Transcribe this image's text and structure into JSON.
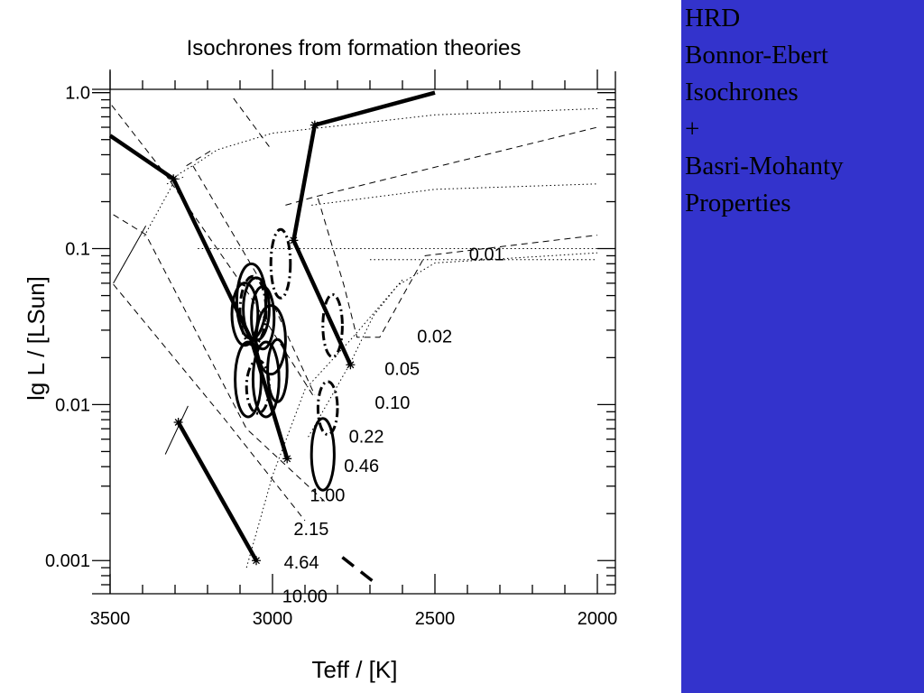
{
  "slide": {
    "panel_color": "#3333cc",
    "text_color": "#000000",
    "lines": [
      "HRD",
      "Bonnor-Ebert",
      "Isochrones",
      "+",
      "Basri-Mohanty",
      "Properties"
    ]
  },
  "chart_data": {
    "type": "line",
    "title": "Isochrones from formation theories",
    "xlabel": "Teff / [K]",
    "ylabel": "lg L / [LSun]",
    "x_reversed": true,
    "y_log": true,
    "xlim": [
      3500,
      2000
    ],
    "ylim": [
      0.0007,
      1.2
    ],
    "x_ticks": [
      3500,
      3000,
      2500,
      2000
    ],
    "x_tick_labels": [
      "3500",
      "3000",
      "2500",
      "2000"
    ],
    "y_ticks": [
      0.001,
      0.01,
      0.1,
      1.0
    ],
    "y_tick_labels": [
      "0.001",
      "0.01",
      "0.1",
      "1.0"
    ],
    "grid": false,
    "legend": "none",
    "series": [
      {
        "style": "solid-bold",
        "points": [
          [
            3500,
            0.53
          ],
          [
            3305,
            0.28
          ],
          [
            3065,
            0.026
          ],
          [
            2955,
            0.0045
          ]
        ]
      },
      {
        "style": "solid-bold",
        "points": [
          [
            2870,
            0.62
          ],
          [
            2935,
            0.113
          ],
          [
            2760,
            0.018
          ]
        ]
      },
      {
        "style": "solid-bold",
        "points": [
          [
            2870,
            0.62
          ],
          [
            2500,
            1.0
          ]
        ]
      },
      {
        "style": "solid-bold",
        "points": [
          [
            3290,
            0.0077
          ],
          [
            3050,
            0.001
          ]
        ]
      },
      {
        "style": "dashed-bold",
        "points": [
          [
            2785,
            0.00105
          ],
          [
            2685,
            0.00072
          ]
        ]
      },
      {
        "style": "solid-thin",
        "points": [
          [
            3490,
            0.06
          ],
          [
            3390,
            0.14
          ]
        ]
      },
      {
        "style": "solid-thin",
        "points": [
          [
            3330,
            0.0048
          ],
          [
            3260,
            0.0098
          ]
        ]
      },
      {
        "style": "dashed",
        "points": [
          [
            3495,
            0.83
          ],
          [
            3330,
            0.3
          ],
          [
            3070,
            0.05
          ],
          [
            2870,
            0.011
          ]
        ]
      },
      {
        "style": "dashed",
        "points": [
          [
            3490,
            0.165
          ],
          [
            3390,
            0.123
          ],
          [
            3080,
            0.007
          ],
          [
            2840,
            0.0024
          ]
        ]
      },
      {
        "style": "dashed",
        "points": [
          [
            3490,
            0.059
          ],
          [
            3150,
            0.0082
          ],
          [
            2900,
            0.0018
          ]
        ]
      },
      {
        "style": "dashed",
        "points": [
          [
            3245,
            0.34
          ],
          [
            3010,
            0.05
          ],
          [
            2870,
            0.0115
          ]
        ]
      },
      {
        "style": "dashed",
        "points": [
          [
            2960,
            0.19
          ],
          [
            2870,
            0.215
          ],
          [
            2000,
            0.6
          ]
        ]
      },
      {
        "style": "dashed",
        "points": [
          [
            2860,
            0.21
          ],
          [
            2780,
            0.058
          ],
          [
            2740,
            0.027
          ],
          [
            2670,
            0.027
          ],
          [
            2530,
            0.09
          ],
          [
            2000,
            0.122
          ]
        ]
      },
      {
        "style": "dashed",
        "points": [
          [
            3120,
            0.92
          ],
          [
            3010,
            0.45
          ]
        ]
      },
      {
        "style": "dashed",
        "points": [
          [
            3265,
            0.34
          ],
          [
            3185,
            0.43
          ]
        ]
      },
      {
        "style": "dotted",
        "points": [
          [
            3395,
            0.12
          ],
          [
            3290,
            0.3
          ],
          [
            3235,
            0.35
          ],
          [
            3170,
            0.43
          ],
          [
            3000,
            0.55
          ],
          [
            2500,
            0.72
          ],
          [
            2000,
            0.79
          ]
        ]
      },
      {
        "style": "dotted",
        "points": [
          [
            3230,
            0.1
          ],
          [
            2000,
            0.1
          ]
        ]
      },
      {
        "style": "dotted",
        "points": [
          [
            2700,
            0.085
          ],
          [
            2000,
            0.085
          ]
        ]
      },
      {
        "style": "dotted",
        "points": [
          [
            2880,
            0.19
          ],
          [
            2500,
            0.24
          ],
          [
            2000,
            0.26
          ]
        ]
      },
      {
        "style": "dotted",
        "points": [
          [
            3325,
            0.26
          ],
          [
            3270,
            0.29
          ]
        ]
      },
      {
        "style": "dotted",
        "points": [
          [
            2890,
            0.0062
          ],
          [
            2760,
            0.0185
          ],
          [
            2690,
            0.037
          ],
          [
            2615,
            0.058
          ],
          [
            2500,
            0.081
          ],
          [
            2000,
            0.094
          ]
        ]
      },
      {
        "style": "dotted",
        "points": [
          [
            3080,
            0.0009
          ],
          [
            3000,
            0.0035
          ],
          [
            2900,
            0.0125
          ],
          [
            2760,
            0.026
          ],
          [
            2600,
            0.063
          ]
        ]
      }
    ],
    "mass_labels": [
      {
        "text": "0.01",
        "x": 2395,
        "y": 0.084
      },
      {
        "text": "0.02",
        "x": 2555,
        "y": 0.025
      },
      {
        "text": "0.05",
        "x": 2655,
        "y": 0.0155
      },
      {
        "text": "0.10",
        "x": 2685,
        "y": 0.0094
      },
      {
        "text": "0.22",
        "x": 2765,
        "y": 0.0057
      },
      {
        "text": "0.46",
        "x": 2780,
        "y": 0.0037
      },
      {
        "text": "1.00",
        "x": 2885,
        "y": 0.0024
      },
      {
        "text": "2.15",
        "x": 2935,
        "y": 0.00146
      },
      {
        "text": "4.64",
        "x": 2965,
        "y": 0.00089
      },
      {
        "text": "10.00",
        "x": 2970,
        "y": 0.00054
      }
    ],
    "markers": [
      {
        "x": 3305,
        "y": 0.28
      },
      {
        "x": 2870,
        "y": 0.62
      },
      {
        "x": 2935,
        "y": 0.113
      },
      {
        "x": 2760,
        "y": 0.018
      },
      {
        "x": 2955,
        "y": 0.0045
      },
      {
        "x": 3290,
        "y": 0.0077
      },
      {
        "x": 3050,
        "y": 0.001
      }
    ],
    "ellipses": [
      {
        "cx": 3065,
        "cy": 0.046,
        "rx": 45,
        "ry_log": 0.24,
        "style": "solid"
      },
      {
        "cx": 3085,
        "cy": 0.038,
        "rx": 40,
        "ry_log": 0.2,
        "style": "solid"
      },
      {
        "cx": 3050,
        "cy": 0.041,
        "rx": 40,
        "ry_log": 0.2,
        "style": "solid"
      },
      {
        "cx": 3030,
        "cy": 0.036,
        "rx": 35,
        "ry_log": 0.2,
        "style": "solid"
      },
      {
        "cx": 3005,
        "cy": 0.026,
        "rx": 45,
        "ry_log": 0.22,
        "style": "solid"
      },
      {
        "cx": 3075,
        "cy": 0.0145,
        "rx": 40,
        "ry_log": 0.24,
        "style": "solid"
      },
      {
        "cx": 3020,
        "cy": 0.0145,
        "rx": 40,
        "ry_log": 0.24,
        "style": "solid"
      },
      {
        "cx": 2985,
        "cy": 0.0165,
        "rx": 30,
        "ry_log": 0.2,
        "style": "solid"
      },
      {
        "cx": 2845,
        "cy": 0.0048,
        "rx": 35,
        "ry_log": 0.23,
        "style": "solid"
      },
      {
        "cx": 2975,
        "cy": 0.08,
        "rx": 30,
        "ry_log": 0.22,
        "style": "dash-dot"
      },
      {
        "cx": 3060,
        "cy": 0.04,
        "rx": 40,
        "ry_log": 0.22,
        "style": "dash-dot"
      },
      {
        "cx": 3045,
        "cy": 0.013,
        "rx": 35,
        "ry_log": 0.17,
        "style": "dash-dot"
      },
      {
        "cx": 2815,
        "cy": 0.032,
        "rx": 30,
        "ry_log": 0.2,
        "style": "dash-dot"
      },
      {
        "cx": 2830,
        "cy": 0.0095,
        "rx": 30,
        "ry_log": 0.17,
        "style": "dash-dot"
      }
    ]
  }
}
